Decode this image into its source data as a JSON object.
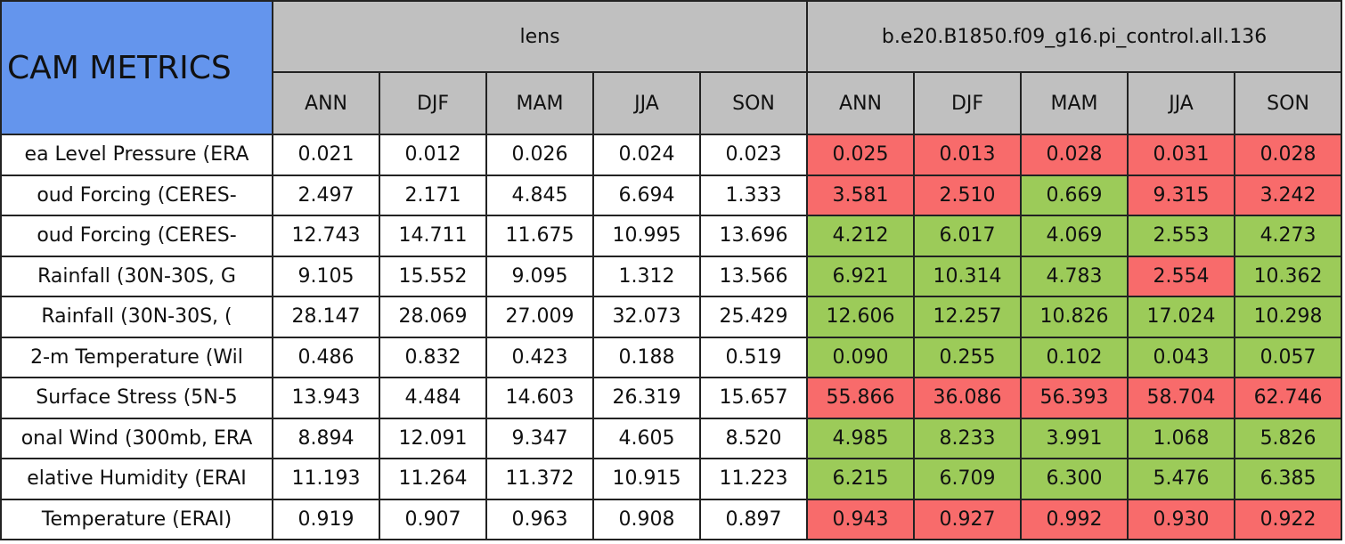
{
  "table": {
    "title": "CAM METRICS",
    "groups": [
      "lens",
      "b.e20.B1850.f09_g16.pi_control.all.136"
    ],
    "seasons": [
      "ANN",
      "DJF",
      "MAM",
      "JJA",
      "SON"
    ],
    "colors": {
      "header": "#c0c0c0",
      "title": "#6495ed",
      "plain": "#ffffff",
      "worse": "#f86b6b",
      "better": "#9ccb59"
    },
    "rows": [
      {
        "label": "ea Level Pressure (ERA",
        "values": [
          "0.021",
          "0.012",
          "0.026",
          "0.024",
          "0.023",
          "0.025",
          "0.013",
          "0.028",
          "0.031",
          "0.028"
        ],
        "colors": [
          "#f86b6b",
          "#f86b6b",
          "#f86b6b",
          "#f86b6b",
          "#f86b6b"
        ]
      },
      {
        "label": "oud Forcing (CERES-",
        "values": [
          "2.497",
          "2.171",
          "4.845",
          "6.694",
          "1.333",
          "3.581",
          "2.510",
          "0.669",
          "9.315",
          "3.242"
        ],
        "colors": [
          "#f86b6b",
          "#f86b6b",
          "#9ccb59",
          "#f86b6b",
          "#f86b6b"
        ]
      },
      {
        "label": "oud Forcing (CERES-",
        "values": [
          "12.743",
          "14.711",
          "11.675",
          "10.995",
          "13.696",
          "4.212",
          "6.017",
          "4.069",
          "2.553",
          "4.273"
        ],
        "colors": [
          "#9ccb59",
          "#9ccb59",
          "#9ccb59",
          "#9ccb59",
          "#9ccb59"
        ]
      },
      {
        "label": "Rainfall (30N-30S, G",
        "values": [
          "9.105",
          "15.552",
          "9.095",
          "1.312",
          "13.566",
          "6.921",
          "10.314",
          "4.783",
          "2.554",
          "10.362"
        ],
        "colors": [
          "#9ccb59",
          "#9ccb59",
          "#9ccb59",
          "#f86b6b",
          "#9ccb59"
        ]
      },
      {
        "label": "Rainfall (30N-30S, (",
        "values": [
          "28.147",
          "28.069",
          "27.009",
          "32.073",
          "25.429",
          "12.606",
          "12.257",
          "10.826",
          "17.024",
          "10.298"
        ],
        "colors": [
          "#9ccb59",
          "#9ccb59",
          "#9ccb59",
          "#9ccb59",
          "#9ccb59"
        ]
      },
      {
        "label": "2-m Temperature (Wil",
        "values": [
          "0.486",
          "0.832",
          "0.423",
          "0.188",
          "0.519",
          "0.090",
          "0.255",
          "0.102",
          "0.043",
          "0.057"
        ],
        "colors": [
          "#9ccb59",
          "#9ccb59",
          "#9ccb59",
          "#9ccb59",
          "#9ccb59"
        ]
      },
      {
        "label": "Surface Stress (5N-5",
        "values": [
          "13.943",
          "4.484",
          "14.603",
          "26.319",
          "15.657",
          "55.866",
          "36.086",
          "56.393",
          "58.704",
          "62.746"
        ],
        "colors": [
          "#f86b6b",
          "#f86b6b",
          "#f86b6b",
          "#f86b6b",
          "#f86b6b"
        ]
      },
      {
        "label": "onal Wind (300mb, ERA",
        "values": [
          "8.894",
          "12.091",
          "9.347",
          "4.605",
          "8.520",
          "4.985",
          "8.233",
          "3.991",
          "1.068",
          "5.826"
        ],
        "colors": [
          "#9ccb59",
          "#9ccb59",
          "#9ccb59",
          "#9ccb59",
          "#9ccb59"
        ]
      },
      {
        "label": "elative Humidity (ERAI",
        "values": [
          "11.193",
          "11.264",
          "11.372",
          "10.915",
          "11.223",
          "6.215",
          "6.709",
          "6.300",
          "5.476",
          "6.385"
        ],
        "colors": [
          "#9ccb59",
          "#9ccb59",
          "#9ccb59",
          "#9ccb59",
          "#9ccb59"
        ]
      },
      {
        "label": "Temperature (ERAI)",
        "values": [
          "0.919",
          "0.907",
          "0.963",
          "0.908",
          "0.897",
          "0.943",
          "0.927",
          "0.992",
          "0.930",
          "0.922"
        ],
        "colors": [
          "#f86b6b",
          "#f86b6b",
          "#f86b6b",
          "#f86b6b",
          "#f86b6b"
        ]
      }
    ]
  }
}
